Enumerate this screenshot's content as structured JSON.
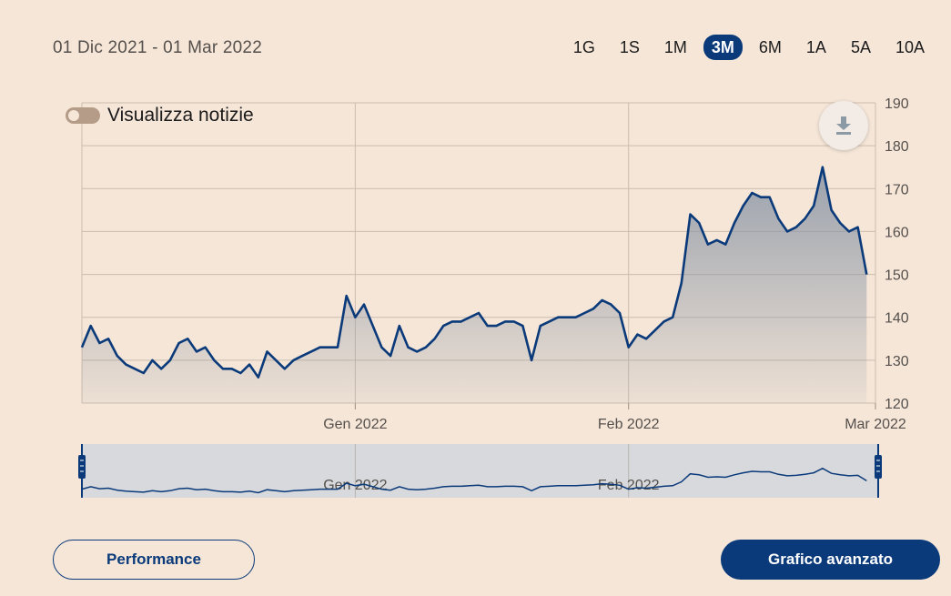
{
  "header": {
    "date_range": "01 Dic 2021 - 01 Mar 2022",
    "periods": [
      "1G",
      "1S",
      "1M",
      "3M",
      "6M",
      "1A",
      "5A",
      "10A"
    ],
    "active_period": "3M"
  },
  "news_toggle": {
    "label": "Visualizza notizie",
    "enabled": false
  },
  "download": {
    "icon": "download-icon"
  },
  "buttons": {
    "performance": "Performance",
    "advanced": "Grafico avanzato"
  },
  "colors": {
    "line": "#0a3a7a",
    "accent": "#0a3a7a",
    "background": "#f5e6d8"
  },
  "chart_data": {
    "type": "area",
    "ylim": [
      120,
      190
    ],
    "yticks": [
      190,
      180,
      170,
      160,
      150,
      140,
      130,
      120
    ],
    "y_axis_side": "right",
    "xlim": [
      "2021-12-01",
      "2022-03-01"
    ],
    "xticks": [
      {
        "date": "2022-01-01",
        "label": "Gen 2022"
      },
      {
        "date": "2022-02-01",
        "label": "Feb 2022"
      },
      {
        "date": "2022-03-01",
        "label": "Mar 2022"
      }
    ],
    "grid": true,
    "series": [
      {
        "points": [
          [
            "2021-12-01",
            133
          ],
          [
            "2021-12-02",
            138
          ],
          [
            "2021-12-03",
            134
          ],
          [
            "2021-12-04",
            135
          ],
          [
            "2021-12-05",
            131
          ],
          [
            "2021-12-06",
            129
          ],
          [
            "2021-12-07",
            128
          ],
          [
            "2021-12-08",
            127
          ],
          [
            "2021-12-09",
            130
          ],
          [
            "2021-12-10",
            128
          ],
          [
            "2021-12-11",
            130
          ],
          [
            "2021-12-12",
            134
          ],
          [
            "2021-12-13",
            135
          ],
          [
            "2021-12-14",
            132
          ],
          [
            "2021-12-15",
            133
          ],
          [
            "2021-12-16",
            130
          ],
          [
            "2021-12-17",
            128
          ],
          [
            "2021-12-18",
            128
          ],
          [
            "2021-12-19",
            127
          ],
          [
            "2021-12-20",
            129
          ],
          [
            "2021-12-21",
            126
          ],
          [
            "2021-12-22",
            132
          ],
          [
            "2021-12-23",
            130
          ],
          [
            "2021-12-24",
            128
          ],
          [
            "2021-12-25",
            130
          ],
          [
            "2021-12-26",
            131
          ],
          [
            "2021-12-27",
            132
          ],
          [
            "2021-12-28",
            133
          ],
          [
            "2021-12-29",
            133
          ],
          [
            "2021-12-30",
            133
          ],
          [
            "2021-12-31",
            145
          ],
          [
            "2022-01-01",
            140
          ],
          [
            "2022-01-02",
            143
          ],
          [
            "2022-01-03",
            138
          ],
          [
            "2022-01-04",
            133
          ],
          [
            "2022-01-05",
            131
          ],
          [
            "2022-01-06",
            138
          ],
          [
            "2022-01-07",
            133
          ],
          [
            "2022-01-08",
            132
          ],
          [
            "2022-01-09",
            133
          ],
          [
            "2022-01-10",
            135
          ],
          [
            "2022-01-11",
            138
          ],
          [
            "2022-01-12",
            139
          ],
          [
            "2022-01-13",
            139
          ],
          [
            "2022-01-14",
            140
          ],
          [
            "2022-01-15",
            141
          ],
          [
            "2022-01-16",
            138
          ],
          [
            "2022-01-17",
            138
          ],
          [
            "2022-01-18",
            139
          ],
          [
            "2022-01-19",
            139
          ],
          [
            "2022-01-20",
            138
          ],
          [
            "2022-01-21",
            130
          ],
          [
            "2022-01-22",
            138
          ],
          [
            "2022-01-23",
            139
          ],
          [
            "2022-01-24",
            140
          ],
          [
            "2022-01-25",
            140
          ],
          [
            "2022-01-26",
            140
          ],
          [
            "2022-01-27",
            141
          ],
          [
            "2022-01-28",
            142
          ],
          [
            "2022-01-29",
            144
          ],
          [
            "2022-01-30",
            143
          ],
          [
            "2022-01-31",
            141
          ],
          [
            "2022-02-01",
            133
          ],
          [
            "2022-02-02",
            136
          ],
          [
            "2022-02-03",
            135
          ],
          [
            "2022-02-04",
            137
          ],
          [
            "2022-02-05",
            139
          ],
          [
            "2022-02-06",
            140
          ],
          [
            "2022-02-07",
            148
          ],
          [
            "2022-02-08",
            164
          ],
          [
            "2022-02-09",
            162
          ],
          [
            "2022-02-10",
            157
          ],
          [
            "2022-02-11",
            158
          ],
          [
            "2022-02-12",
            157
          ],
          [
            "2022-02-13",
            162
          ],
          [
            "2022-02-14",
            166
          ],
          [
            "2022-02-15",
            169
          ],
          [
            "2022-02-16",
            168
          ],
          [
            "2022-02-17",
            168
          ],
          [
            "2022-02-18",
            163
          ],
          [
            "2022-02-19",
            160
          ],
          [
            "2022-02-20",
            161
          ],
          [
            "2022-02-21",
            163
          ],
          [
            "2022-02-22",
            166
          ],
          [
            "2022-02-23",
            175
          ],
          [
            "2022-02-24",
            165
          ],
          [
            "2022-02-25",
            162
          ],
          [
            "2022-02-26",
            160
          ],
          [
            "2022-02-27",
            161
          ],
          [
            "2022-02-28",
            150
          ]
        ]
      }
    ],
    "navigator": {
      "labels": [
        "Gen 2022",
        "Feb 2022"
      ]
    }
  }
}
